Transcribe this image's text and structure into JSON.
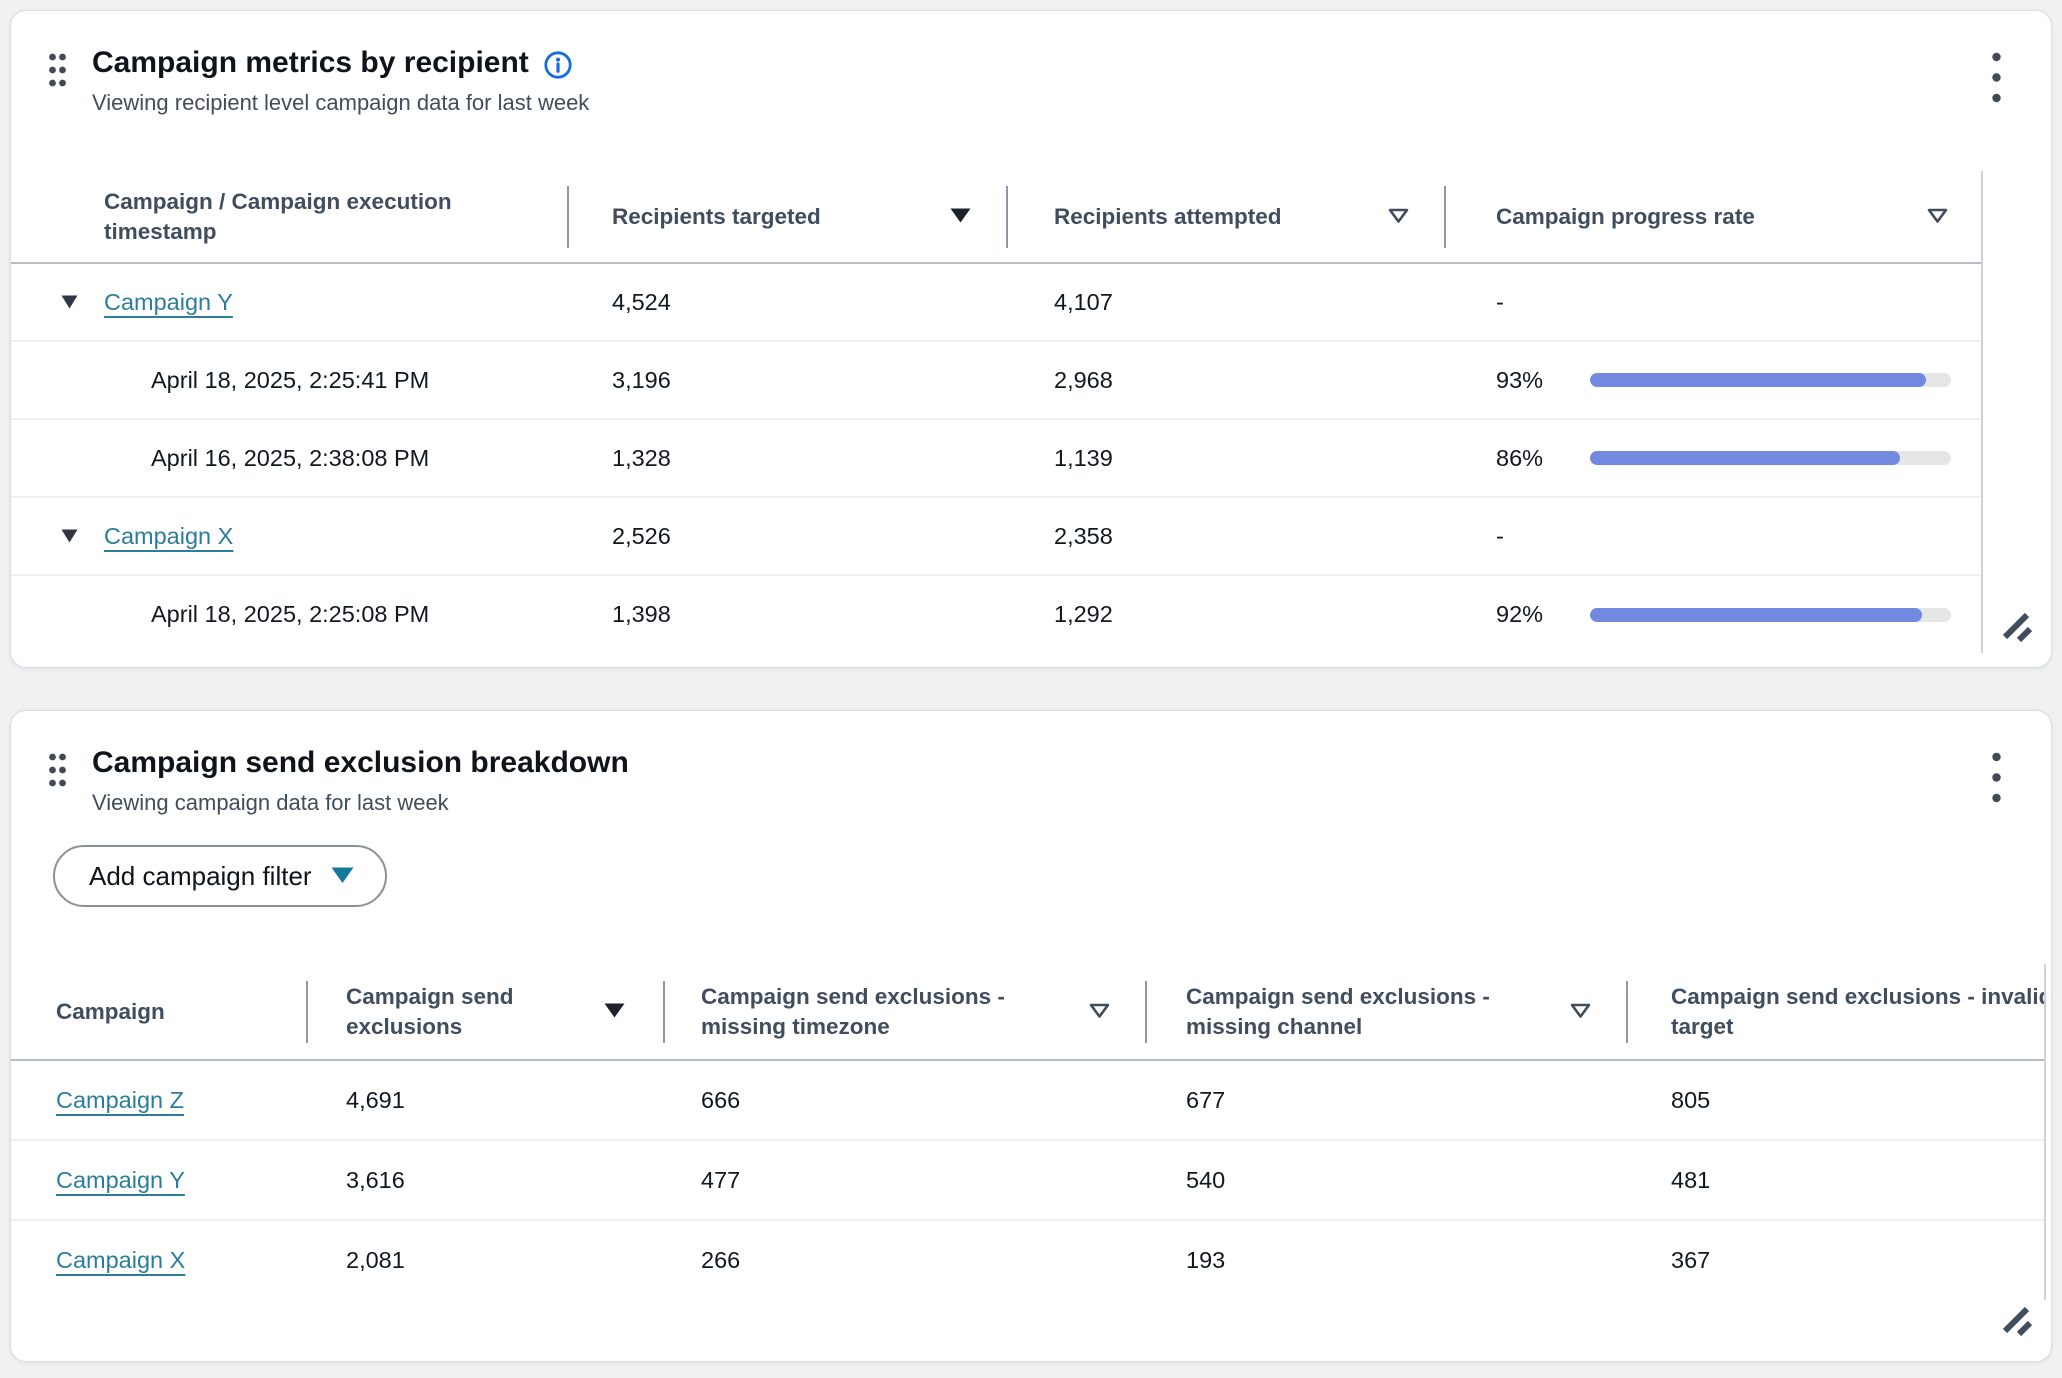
{
  "metrics_panel": {
    "title": "Campaign metrics by recipient",
    "subtitle": "Viewing recipient level campaign data for last week",
    "columns": [
      {
        "label": "Campaign / Campaign execution timestamp",
        "sortable": false
      },
      {
        "label": "Recipients targeted",
        "sortable": true,
        "sort_state": "active-desc"
      },
      {
        "label": "Recipients attempted",
        "sortable": true,
        "sort_state": "inactive"
      },
      {
        "label": "Campaign progress rate",
        "sortable": true,
        "sort_state": "inactive"
      }
    ],
    "rows": [
      {
        "kind": "group",
        "expanded": true,
        "name": "Campaign Y",
        "targeted": "4,524",
        "attempted": "4,107",
        "progress_text": "-"
      },
      {
        "kind": "execution",
        "name": "April 18, 2025, 2:25:41 PM",
        "targeted": "3,196",
        "attempted": "2,968",
        "progress_text": "93%",
        "progress_pct": 93
      },
      {
        "kind": "execution",
        "name": "April 16, 2025, 2:38:08 PM",
        "targeted": "1,328",
        "attempted": "1,139",
        "progress_text": "86%",
        "progress_pct": 86
      },
      {
        "kind": "group",
        "expanded": true,
        "name": "Campaign X",
        "targeted": "2,526",
        "attempted": "2,358",
        "progress_text": "-"
      },
      {
        "kind": "execution",
        "name": "April 18, 2025, 2:25:08 PM",
        "targeted": "1,398",
        "attempted": "1,292",
        "progress_text": "92%",
        "progress_pct": 92
      }
    ]
  },
  "exclusion_panel": {
    "title": "Campaign send exclusion breakdown",
    "subtitle": "Viewing campaign data for last week",
    "filter_button_label": "Add campaign filter",
    "columns": [
      {
        "label": "Campaign",
        "sortable": false
      },
      {
        "label": "Campaign send exclusions",
        "sortable": true,
        "sort_state": "active-desc"
      },
      {
        "label": "Campaign send exclusions - missing timezone",
        "sortable": true,
        "sort_state": "inactive"
      },
      {
        "label": "Campaign send exclusions - missing channel",
        "sortable": true,
        "sort_state": "inactive"
      },
      {
        "label": "Campaign send exclusions - invalid target",
        "sortable": false,
        "clipped": true
      }
    ],
    "rows": [
      {
        "name": "Campaign Z",
        "exclusions": "4,691",
        "missing_timezone": "666",
        "missing_channel": "677",
        "invalid_target": "805"
      },
      {
        "name": "Campaign Y",
        "exclusions": "3,616",
        "missing_timezone": "477",
        "missing_channel": "540",
        "invalid_target": "481"
      },
      {
        "name": "Campaign X",
        "exclusions": "2,081",
        "missing_timezone": "266",
        "missing_channel": "193",
        "invalid_target": "367"
      }
    ]
  },
  "colors": {
    "page_background": "#f0f1f2",
    "link": "#2b7d9b",
    "progress_fill": "#7189e0",
    "progress_track": "#e5e6e8",
    "info_icon": "#146de0",
    "filter_caret": "#15799e"
  }
}
